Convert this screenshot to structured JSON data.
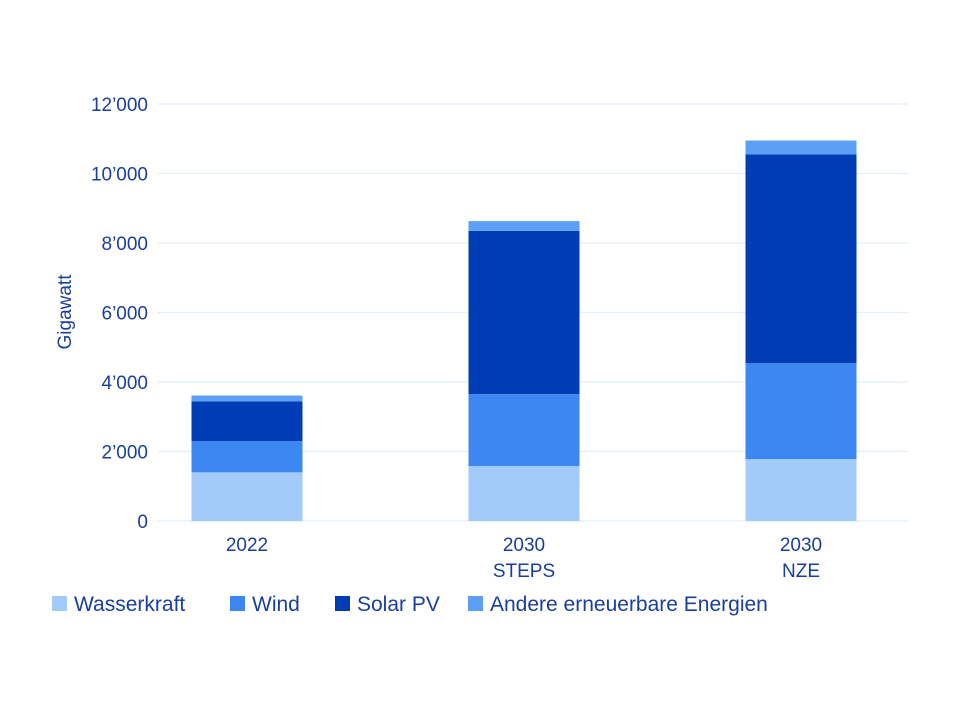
{
  "chart_data": {
    "type": "bar",
    "stacked": true,
    "title": "",
    "xlabel": "",
    "ylabel": "Gigawatt",
    "ylim": [
      0,
      12000
    ],
    "yticks": [
      0,
      2000,
      4000,
      6000,
      8000,
      10000,
      12000
    ],
    "ytick_labels": [
      "0",
      "2’000",
      "4’000",
      "6’000",
      "8’000",
      "10’000",
      "12’000"
    ],
    "grid": true,
    "legend_position": "bottom",
    "categories": [
      [
        "2022"
      ],
      [
        "2030",
        "STEPS"
      ],
      [
        "2030",
        "NZE"
      ]
    ],
    "series": [
      {
        "name": "Wasserkraft",
        "color": "#a3cbfa",
        "values": [
          1400,
          1580,
          1780
        ]
      },
      {
        "name": "Wind",
        "color": "#3d87f2",
        "values": [
          900,
          2070,
          2760
        ]
      },
      {
        "name": "Solar PV",
        "color": "#003db5",
        "values": [
          1140,
          4700,
          6010
        ]
      },
      {
        "name": "Andere erneuerbare Energien",
        "color": "#5d9ff5",
        "values": [
          170,
          280,
          400
        ]
      }
    ]
  }
}
